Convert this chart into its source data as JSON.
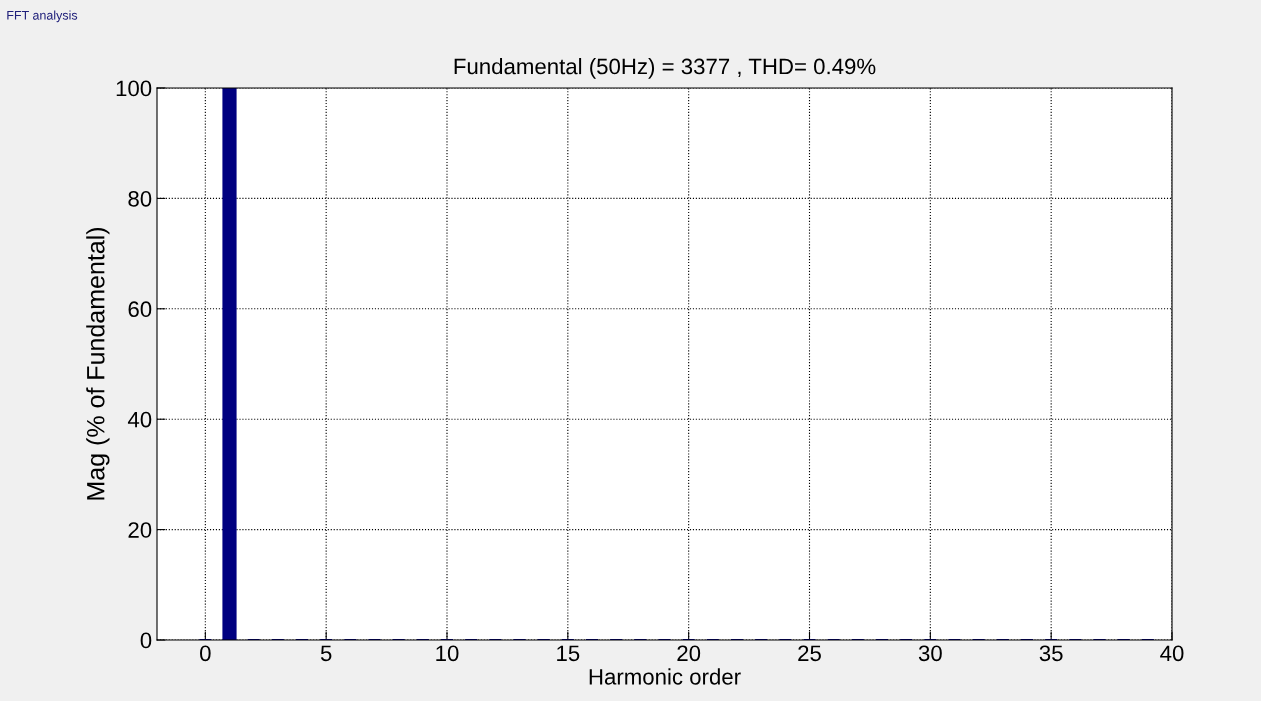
{
  "chart_data": {
    "type": "bar",
    "title": "Fundamental (50Hz) = 3377 , THD= 0.49%",
    "xlabel": "Harmonic order",
    "ylabel": "Mag (% of Fundamental)",
    "annotations": [
      "FFT analysis"
    ],
    "x": [
      0,
      1,
      2,
      3,
      4,
      5,
      6,
      7,
      8,
      9,
      10,
      11,
      12,
      13,
      14,
      15,
      16,
      17,
      18,
      19,
      20,
      21,
      22,
      23,
      24,
      25,
      26,
      27,
      28,
      29,
      30,
      31,
      32,
      33,
      34,
      35,
      36,
      37,
      38,
      39
    ],
    "values": [
      0,
      100,
      0,
      0,
      0,
      0,
      0,
      0,
      0,
      0,
      0,
      0,
      0,
      0,
      0,
      0,
      0,
      0,
      0,
      0,
      0,
      0,
      0,
      0,
      0,
      0,
      0,
      0,
      0,
      0,
      0,
      0,
      0,
      0,
      0,
      0,
      0,
      0,
      0,
      0
    ],
    "color": "#000080",
    "xlim": [
      -2,
      40
    ],
    "xticks": [
      0,
      5,
      10,
      15,
      20,
      25,
      30,
      35,
      40
    ],
    "ylim": [
      0,
      100
    ],
    "yticks": [
      0,
      20,
      40,
      60,
      80,
      100
    ],
    "grid": true
  }
}
